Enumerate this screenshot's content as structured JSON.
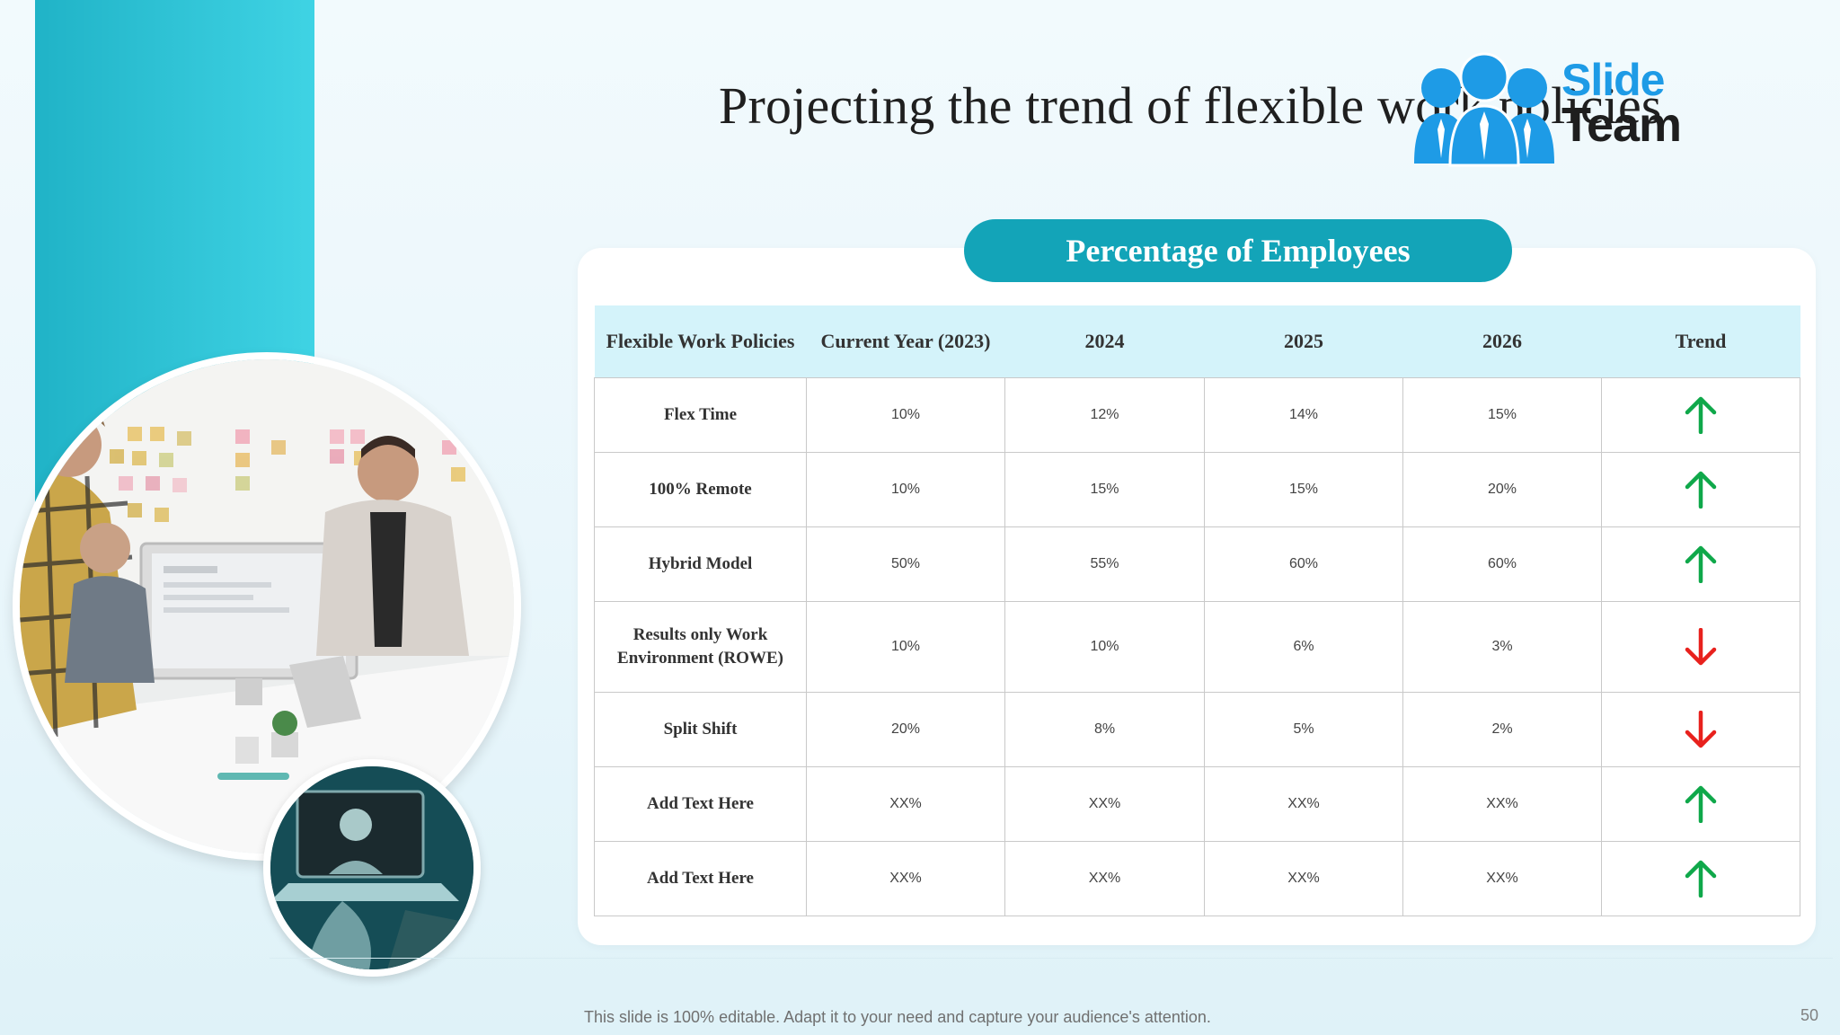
{
  "slide": {
    "title": "Projecting the trend of flexible work policies",
    "footer": "This slide is 100% editable. Adapt it to your need and capture your audience's attention.",
    "page_number": "50"
  },
  "logo": {
    "line1": "Slide",
    "line2": "Team",
    "color": "#1e9be6"
  },
  "table": {
    "banner": "Percentage of Employees",
    "headers": [
      "Flexible Work Policies",
      "Current Year (2023)",
      "2024",
      "2025",
      "2026",
      "Trend"
    ],
    "rows": [
      {
        "policy": "Flex Time",
        "values": [
          "10%",
          "12%",
          "14%",
          "15%"
        ],
        "trend": "up"
      },
      {
        "policy": "100% Remote",
        "values": [
          "10%",
          "15%",
          "15%",
          "20%"
        ],
        "trend": "up"
      },
      {
        "policy": "Hybrid  Model",
        "values": [
          "50%",
          "55%",
          "60%",
          "60%"
        ],
        "trend": "up"
      },
      {
        "policy": "Results only Work Environment  (ROWE)",
        "values": [
          "10%",
          "10%",
          "6%",
          "3%"
        ],
        "trend": "down"
      },
      {
        "policy": "Split Shift",
        "values": [
          "20%",
          "8%",
          "5%",
          "2%"
        ],
        "trend": "down"
      },
      {
        "policy": "Add  Text Here",
        "values": [
          "XX%",
          "XX%",
          "XX%",
          "XX%"
        ],
        "trend": "up"
      },
      {
        "policy": "Add  Text Here",
        "values": [
          "XX%",
          "XX%",
          "XX%",
          "XX%"
        ],
        "trend": "up"
      }
    ]
  },
  "colors": {
    "accent": "#13a4b8",
    "up_arrow": "#0fa84a",
    "down_arrow": "#e8211d",
    "header_fill": "#d4f3fa"
  },
  "icons": {
    "up": "arrow-up-icon",
    "down": "arrow-down-icon"
  }
}
